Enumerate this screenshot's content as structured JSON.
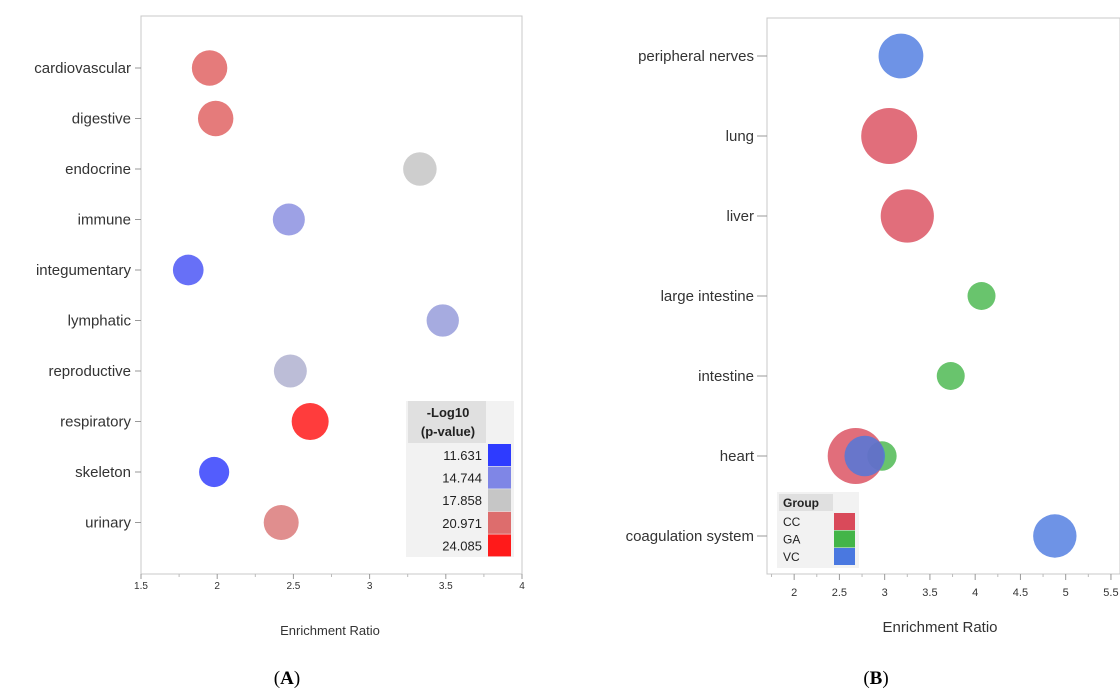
{
  "chart_data": [
    {
      "panel_label": {
        "open": "(",
        "letter": "A",
        "close": ")"
      },
      "type": "scatter",
      "xlabel": "Enrichment Ratio",
      "xlim": [
        1.5,
        4
      ],
      "x_ticks": [
        "1.5",
        "2",
        "2.5",
        "3",
        "3.5",
        "4"
      ],
      "categories": [
        "cardiovascular",
        "digestive",
        "endocrine",
        "immune",
        "integumentary",
        "lymphatic",
        "reproductive",
        "respiratory",
        "skeleton",
        "urinary"
      ],
      "points": [
        {
          "category": "cardiovascular",
          "x": 1.95,
          "neg_log10_p": 21.3
        },
        {
          "category": "digestive",
          "x": 1.99,
          "neg_log10_p": 21.3
        },
        {
          "category": "endocrine",
          "x": 3.33,
          "neg_log10_p": 17.9
        },
        {
          "category": "immune",
          "x": 2.47,
          "neg_log10_p": 15.3
        },
        {
          "category": "integumentary",
          "x": 1.81,
          "neg_log10_p": 12.8
        },
        {
          "category": "lymphatic",
          "x": 3.48,
          "neg_log10_p": 15.8
        },
        {
          "category": "reproductive",
          "x": 2.48,
          "neg_log10_p": 16.9
        },
        {
          "category": "respiratory",
          "x": 2.61,
          "neg_log10_p": 24.1
        },
        {
          "category": "skeleton",
          "x": 1.98,
          "neg_log10_p": 11.9
        },
        {
          "category": "urinary",
          "x": 2.42,
          "neg_log10_p": 20.5
        }
      ],
      "legend": {
        "title_line1": "-Log10",
        "title_line2": "(p-value)",
        "placement": "bottom-right",
        "items": [
          {
            "label": "11.631",
            "color": "#2e3bff"
          },
          {
            "label": "14.744",
            "color": "#7f86e6"
          },
          {
            "label": "17.858",
            "color": "#c6c6c6"
          },
          {
            "label": "20.971",
            "color": "#dd6d6d"
          },
          {
            "label": "24.085",
            "color": "#ff1a1a"
          }
        ]
      }
    },
    {
      "panel_label": {
        "open": "(",
        "letter": "B",
        "close": ")"
      },
      "type": "scatter",
      "xlabel": "Enrichment Ratio",
      "xlim": [
        1.7,
        5.6
      ],
      "x_ticks": [
        "2",
        "2.5",
        "3",
        "3.5",
        "4",
        "4.5",
        "5",
        "5.5"
      ],
      "categories": [
        "peripheral nerves",
        "lung",
        "liver",
        "large intestine",
        "intestine",
        "heart",
        "coagulation system"
      ],
      "points": [
        {
          "category": "peripheral nerves",
          "x": 3.18,
          "group": "VC",
          "size": 1.6
        },
        {
          "category": "lung",
          "x": 3.05,
          "group": "CC",
          "size": 2.0
        },
        {
          "category": "liver",
          "x": 3.25,
          "group": "CC",
          "size": 1.9
        },
        {
          "category": "large intestine",
          "x": 4.07,
          "group": "GA",
          "size": 1.0
        },
        {
          "category": "intestine",
          "x": 3.73,
          "group": "GA",
          "size": 1.0
        },
        {
          "category": "heart",
          "x": 2.97,
          "group": "GA",
          "size": 1.05
        },
        {
          "category": "heart",
          "x": 2.68,
          "group": "CC",
          "size": 2.0
        },
        {
          "category": "heart",
          "x": 2.78,
          "group": "VC",
          "size": 1.45
        },
        {
          "category": "coagulation system",
          "x": 4.88,
          "group": "VC",
          "size": 1.55
        }
      ],
      "legend": {
        "title": "Group",
        "placement": "bottom-left",
        "items": [
          {
            "label": "CC",
            "color": "#d94a5a"
          },
          {
            "label": "GA",
            "color": "#43b548"
          },
          {
            "label": "VC",
            "color": "#4a78e0"
          }
        ]
      }
    }
  ]
}
